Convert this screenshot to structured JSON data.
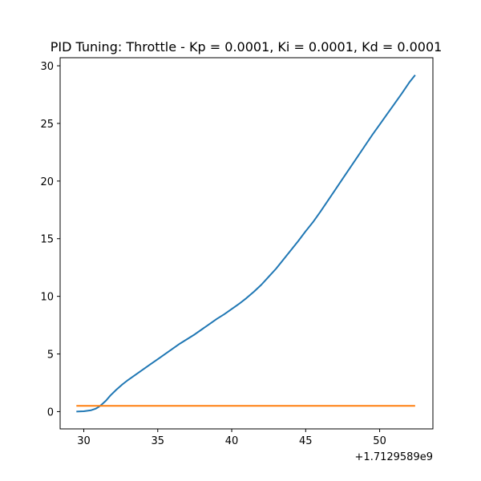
{
  "chart_data": {
    "type": "line",
    "title": "PID Tuning: Throttle - Kp = 0.0001, Ki = 0.0001, Kd = 0.0001",
    "xlabel": "",
    "ylabel": "",
    "x_offset_label": "+1.7129589e9",
    "xlim": [
      28.4,
      53.6
    ],
    "ylim": [
      -1.5,
      30.7
    ],
    "x_ticks": [
      30,
      35,
      40,
      45,
      50
    ],
    "y_ticks": [
      0,
      5,
      10,
      15,
      20,
      25,
      30
    ],
    "grid": false,
    "colors": {
      "series1": "#1f77b4",
      "series2": "#ff7f0e"
    },
    "series": [
      {
        "x": [
          29.5,
          30.0,
          30.5,
          30.8,
          31.0,
          31.2,
          31.5,
          31.8,
          32.2,
          32.6,
          33.0,
          33.5,
          34.0,
          34.5,
          35.0,
          35.5,
          36.0,
          36.5,
          37.0,
          37.5,
          38.0,
          38.5,
          39.0,
          39.5,
          40.0,
          40.5,
          41.0,
          41.5,
          42.0,
          42.5,
          43.0,
          43.5,
          44.0,
          44.5,
          45.0,
          45.5,
          46.0,
          46.5,
          47.0,
          47.5,
          48.0,
          48.5,
          49.0,
          49.5,
          50.0,
          50.5,
          51.0,
          51.5,
          52.0,
          52.4
        ],
        "values": [
          0.0,
          0.03,
          0.12,
          0.25,
          0.4,
          0.6,
          0.95,
          1.4,
          1.9,
          2.35,
          2.75,
          3.2,
          3.65,
          4.1,
          4.55,
          5.0,
          5.45,
          5.9,
          6.3,
          6.7,
          7.15,
          7.6,
          8.05,
          8.45,
          8.9,
          9.35,
          9.85,
          10.4,
          11.0,
          11.7,
          12.4,
          13.2,
          14.0,
          14.8,
          15.65,
          16.45,
          17.35,
          18.3,
          19.25,
          20.2,
          21.15,
          22.1,
          23.05,
          24.0,
          24.9,
          25.8,
          26.7,
          27.6,
          28.55,
          29.2
        ]
      },
      {
        "x": [
          29.5,
          52.4
        ],
        "values": [
          0.5,
          0.5
        ]
      }
    ]
  }
}
